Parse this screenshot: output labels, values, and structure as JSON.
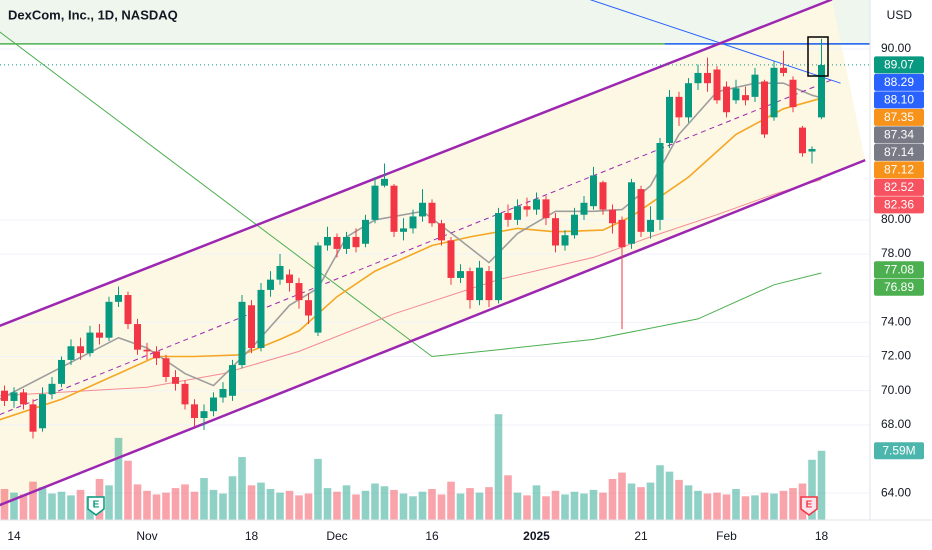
{
  "chart_data": {
    "type": "candlestick",
    "title": "DexCom, Inc., 1D, NASDAQ",
    "currency": "USD",
    "up_color": "#089981",
    "down_color": "#f23645",
    "categories": [
      null,
      "14",
      null,
      null,
      null,
      null,
      null,
      null,
      null,
      null,
      null,
      null,
      null,
      null,
      null,
      "Nov",
      null,
      null,
      null,
      null,
      null,
      null,
      null,
      null,
      null,
      null,
      "18",
      null,
      null,
      null,
      null,
      null,
      null,
      null,
      null,
      "Dec",
      null,
      null,
      null,
      null,
      null,
      null,
      null,
      null,
      null,
      "16",
      null,
      null,
      null,
      null,
      null,
      null,
      null,
      null,
      null,
      null,
      "2025",
      null,
      null,
      null,
      null,
      null,
      null,
      null,
      null,
      null,
      null,
      "21",
      null,
      null,
      null,
      null,
      null,
      null,
      null,
      null,
      "Feb",
      null,
      null,
      null,
      null,
      null,
      null,
      null,
      null,
      null,
      "18"
    ],
    "open": [
      70.0,
      69.4,
      69.9,
      69.2,
      67.8,
      69.8,
      70.4,
      71.8,
      72.6,
      72.2,
      73.4,
      73.1,
      75.2,
      75.6,
      73.9,
      72.4,
      72.3,
      71.9,
      70.8,
      70.4,
      69.2,
      68.4,
      68.8,
      69.6,
      69.7,
      71.5,
      75.0,
      72.5,
      75.9,
      76.5,
      76.8,
      76.3,
      75.3,
      73.4,
      78.5,
      79.0,
      78.3,
      79.0,
      78.6,
      80.0,
      82.0,
      82.0,
      79.3,
      79.5,
      80.2,
      81.0,
      79.8,
      78.8,
      76.6,
      77.0,
      75.3,
      77.0,
      75.3,
      80.4,
      80.0,
      80.8,
      80.6,
      81.2,
      80.1,
      78.5,
      79.1,
      80.3,
      80.8,
      82.2,
      80.6,
      80.0,
      78.6,
      81.8,
      79.3,
      80.0,
      84.5,
      87.2,
      86.0,
      88.0,
      88.6,
      88.8,
      87.8,
      87.0,
      87.3,
      87.2,
      88.1,
      86.0,
      88.9,
      88.2,
      85.4,
      84.0,
      86.0
    ],
    "high": [
      70.3,
      70.2,
      70.1,
      69.5,
      70.2,
      70.8,
      72.0,
      73.0,
      73.1,
      73.8,
      73.9,
      75.5,
      76.1,
      75.8,
      74.2,
      72.8,
      72.6,
      72.1,
      71.2,
      70.6,
      69.5,
      69.2,
      69.9,
      70.5,
      71.8,
      75.6,
      75.3,
      76.3,
      77.0,
      78.0,
      77.1,
      76.6,
      75.7,
      78.7,
      79.6,
      79.2,
      79.3,
      79.5,
      80.3,
      82.5,
      83.3,
      82.1,
      80.1,
      80.6,
      81.8,
      81.2,
      80.0,
      79.0,
      77.4,
      77.2,
      77.6,
      77.3,
      80.7,
      80.9,
      81.2,
      81.3,
      81.6,
      81.4,
      80.4,
      79.4,
      80.7,
      81.4,
      83.1,
      82.3,
      80.9,
      80.2,
      82.4,
      82.0,
      80.8,
      84.8,
      87.6,
      87.5,
      88.3,
      89.1,
      89.5,
      89.0,
      88.1,
      88.2,
      87.8,
      88.9,
      88.2,
      89.3,
      89.9,
      88.4,
      85.5,
      84.3,
      90.6
    ],
    "low": [
      69.1,
      69.0,
      68.9,
      67.2,
      67.6,
      69.5,
      70.2,
      71.5,
      71.8,
      72.0,
      72.7,
      72.9,
      74.9,
      73.6,
      72.1,
      71.8,
      71.5,
      70.5,
      70.0,
      68.9,
      67.9,
      67.7,
      68.5,
      69.3,
      69.4,
      71.3,
      72.2,
      72.3,
      75.5,
      76.2,
      75.8,
      74.8,
      73.9,
      73.2,
      78.2,
      77.8,
      78.0,
      78.1,
      78.4,
      79.8,
      81.9,
      79.0,
      78.8,
      79.2,
      79.9,
      79.6,
      78.5,
      76.2,
      76.3,
      74.8,
      75.0,
      74.9,
      75.1,
      79.6,
      79.7,
      80.2,
      80.3,
      79.7,
      78.1,
      78.2,
      78.9,
      80.0,
      80.6,
      80.3,
      79.2,
      73.6,
      78.3,
      79.0,
      78.9,
      79.4,
      84.2,
      85.5,
      85.7,
      87.6,
      87.5,
      86.8,
      86.0,
      86.8,
      86.7,
      86.9,
      84.8,
      85.8,
      88.4,
      86.3,
      83.7,
      83.3,
      85.9
    ],
    "close": [
      69.4,
      69.9,
      69.2,
      67.6,
      69.8,
      70.4,
      71.8,
      72.6,
      72.2,
      73.4,
      73.1,
      75.2,
      75.6,
      73.9,
      72.4,
      72.3,
      71.9,
      70.8,
      70.4,
      69.2,
      68.4,
      68.8,
      69.6,
      70.1,
      71.5,
      75.2,
      72.5,
      75.9,
      76.5,
      77.3,
      76.3,
      75.3,
      74.4,
      78.5,
      79.0,
      78.3,
      79.0,
      78.4,
      80.0,
      82.0,
      82.4,
      79.3,
      79.5,
      80.2,
      81.0,
      79.8,
      78.8,
      76.6,
      77.0,
      75.3,
      77.2,
      75.3,
      80.4,
      80.0,
      80.8,
      80.6,
      81.2,
      80.1,
      78.5,
      79.1,
      80.3,
      81.0,
      82.6,
      80.6,
      79.8,
      78.4,
      82.2,
      79.3,
      80.0,
      84.5,
      87.2,
      86.0,
      88.0,
      88.6,
      88.0,
      87.0,
      86.3,
      87.7,
      87.0,
      88.5,
      85.0,
      88.9,
      88.6,
      86.6,
      83.9,
      84.15,
      89.07
    ],
    "volume": [
      3.4,
      3.0,
      2.8,
      4.2,
      3.6,
      2.9,
      3.1,
      2.7,
      3.3,
      2.6,
      4.5,
      3.8,
      9.0,
      6.5,
      3.9,
      3.2,
      2.8,
      3.0,
      3.5,
      3.9,
      3.1,
      4.6,
      3.3,
      2.9,
      4.8,
      6.9,
      3.8,
      4.1,
      3.4,
      3.0,
      3.2,
      2.7,
      2.9,
      6.7,
      3.5,
      3.1,
      3.8,
      2.8,
      3.2,
      4.0,
      3.7,
      3.3,
      2.9,
      2.6,
      3.1,
      3.4,
      2.8,
      4.2,
      2.9,
      3.5,
      3.0,
      3.6,
      11.6,
      4.9,
      3.0,
      2.7,
      3.8,
      2.6,
      3.2,
      2.8,
      3.1,
      2.9,
      3.3,
      3.0,
      4.5,
      5.2,
      4.0,
      3.6,
      4.1,
      6.0,
      5.3,
      4.4,
      3.8,
      3.2,
      2.9,
      3.0,
      2.8,
      3.4,
      2.6,
      2.7,
      3.0,
      2.9,
      3.2,
      3.5,
      4.0,
      6.6,
      7.59
    ],
    "volume_label": {
      "value": 7.59,
      "label": "7.59M",
      "color": "#4db6ac"
    },
    "ylim": [
      62.43,
      92.87
    ],
    "y2lim": [
      0,
      57
    ],
    "yticks": [
      {
        "value": 64,
        "label": "64.00"
      },
      {
        "value": 68,
        "label": "68.00"
      },
      {
        "value": 70,
        "label": "70.00"
      },
      {
        "value": 72,
        "label": "72.00"
      },
      {
        "value": 74,
        "label": "74.00"
      },
      {
        "value": 78,
        "label": "78.00"
      },
      {
        "value": 80,
        "label": "80.00"
      },
      {
        "value": 90,
        "label": "90.00"
      }
    ],
    "grid": true,
    "overlays": [
      {
        "color": "#4caf50",
        "width": 1,
        "x": [
          -0.5,
          45,
          52,
          62,
          73,
          81,
          86
        ],
        "values": [
          91.0,
          72.0,
          72.4,
          73.0,
          74.2,
          76.2,
          76.89
        ]
      },
      {
        "color": "#f48a94",
        "width": 1,
        "x": [
          -0.5,
          15,
          23,
          31,
          41,
          52,
          62,
          68,
          75,
          81,
          86
        ],
        "values": [
          69.7,
          70.2,
          71.0,
          72.3,
          74.5,
          76.5,
          77.8,
          79.0,
          80.3,
          81.5,
          82.36
        ]
      },
      {
        "color": "#f5a623",
        "width": 1.6,
        "x": [
          -0.5,
          6,
          12,
          16,
          20,
          25,
          29,
          31,
          35,
          39,
          45,
          49,
          54,
          58,
          63,
          66,
          72,
          77,
          82,
          86
        ],
        "values": [
          68.3,
          69.5,
          71.0,
          72.0,
          72.0,
          72.1,
          73.0,
          73.5,
          75.5,
          77.0,
          78.5,
          79.0,
          79.5,
          79.3,
          79.4,
          80.2,
          82.5,
          85.0,
          86.5,
          87.12
        ]
      },
      {
        "color": "#9e9e9e",
        "width": 1.6,
        "x": [
          -0.5,
          12,
          15,
          19,
          22,
          26,
          30,
          33,
          36,
          39,
          44,
          48,
          51,
          54,
          58,
          62,
          65,
          68,
          71,
          75,
          79,
          82,
          85,
          86
        ],
        "values": [
          69.5,
          73.1,
          72.5,
          71.0,
          70.3,
          72.5,
          75.0,
          76.0,
          79.0,
          80.0,
          80.5,
          78.8,
          77.5,
          79.2,
          80.5,
          80.5,
          80.6,
          82.0,
          85.0,
          87.5,
          88.0,
          88.0,
          87.3,
          87.14
        ]
      },
      {
        "color": "#2962ff",
        "width": 1,
        "x": [
          61.6,
          88
        ],
        "values": [
          92.9,
          88.0
        ]
      },
      {
        "color": "#4caf50",
        "width": 1.5,
        "fill_above": "#eef6ee",
        "x": [
          -0.5,
          92
        ],
        "values": [
          90.3,
          90.3
        ]
      },
      {
        "color": "#2962ff",
        "width": 1.5,
        "x": [
          69.5,
          92
        ],
        "values": [
          90.3,
          90.3
        ]
      }
    ],
    "channel": {
      "color": "#9c27b0",
      "fill": "#fdf8e3",
      "upper": {
        "x": [
          -0.5,
          87.1
        ],
        "values": [
          73.8,
          92.9
        ]
      },
      "middle": {
        "x": [
          -0.5,
          87.1
        ],
        "values": [
          68.6,
          88.2
        ]
      },
      "lower": {
        "x": [
          -0.5,
          90.6
        ],
        "values": [
          63.3,
          83.5
        ]
      }
    },
    "price_labels": [
      {
        "value": 89.07,
        "color": "#089981"
      },
      {
        "value": 88.29,
        "color": "#2962ff"
      },
      {
        "value": 88.1,
        "label": "88.10",
        "color": "#2962ff"
      },
      {
        "value": 87.35,
        "color": "#f7931a"
      },
      {
        "value": 87.34,
        "color": "#787b86"
      },
      {
        "value": 87.14,
        "color": "#787b86"
      },
      {
        "value": 87.12,
        "color": "#f7931a"
      },
      {
        "value": 82.52,
        "color": "#f7525f"
      },
      {
        "value": 82.36,
        "color": "#f7525f"
      },
      {
        "value": 77.08,
        "color": "#4caf50"
      },
      {
        "value": 76.89,
        "color": "#4caf50"
      }
    ],
    "events": [
      "E",
      "E"
    ]
  }
}
